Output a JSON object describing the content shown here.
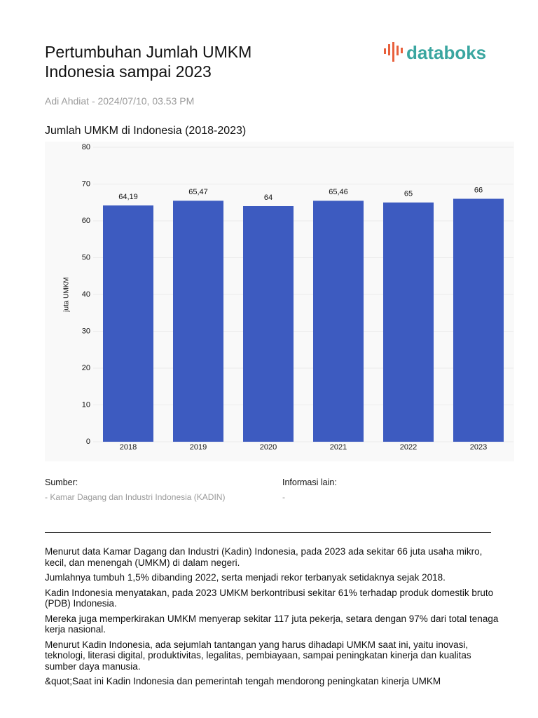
{
  "header": {
    "title": "Pertumbuhan Jumlah UMKM Indonesia sampai 2023",
    "logo": "databoks",
    "byline": "Adi Ahdiat - 2024/07/10, 03.53 PM"
  },
  "chart_data": {
    "type": "bar",
    "title": "Jumlah UMKM di Indonesia (2018-2023)",
    "y_label": "juta UMKM",
    "categories": [
      "2018",
      "2019",
      "2020",
      "2021",
      "2022",
      "2023"
    ],
    "values": [
      64.19,
      65.47,
      64,
      65.46,
      65,
      66
    ],
    "value_labels": [
      "64,19",
      "65,47",
      "64",
      "65,46",
      "65",
      "66"
    ],
    "color": "#3d5bc0",
    "ylim": [
      0,
      80
    ],
    "yticks": [
      0,
      10,
      20,
      30,
      40,
      50,
      60,
      70,
      80
    ],
    "grid": true
  },
  "source": {
    "label": "Sumber:",
    "text": "- Kamar Dagang dan Industri Indonesia (KADIN)"
  },
  "info": {
    "label": "Informasi lain:",
    "text": "-"
  },
  "paragraphs": [
    "Menurut data Kamar Dagang dan Industri (Kadin) Indonesia, pada 2023 ada sekitar 66 juta usaha mikro, kecil, dan menengah (UMKM) di dalam negeri.",
    "Jumlahnya tumbuh 1,5% dibanding 2022, serta menjadi rekor terbanyak setidaknya sejak 2018.",
    "Kadin Indonesia menyatakan, pada 2023 UMKM berkontribusi sekitar 61% terhadap produk domestik bruto (PDB) Indonesia.",
    "Mereka juga memperkirakan UMKM menyerap sekitar 117 juta pekerja, setara dengan 97% dari total tenaga kerja nasional.",
    "Menurut Kadin Indonesia, ada sejumlah tantangan yang harus dihadapi UMKM saat ini, yaitu inovasi, teknologi, literasi digital, produktivitas, legalitas, pembiayaan, sampai peningkatan kinerja dan kualitas sumber daya manusia.",
    "&quot;Saat ini Kadin Indonesia dan pemerintah tengah mendorong peningkatan kinerja UMKM"
  ]
}
